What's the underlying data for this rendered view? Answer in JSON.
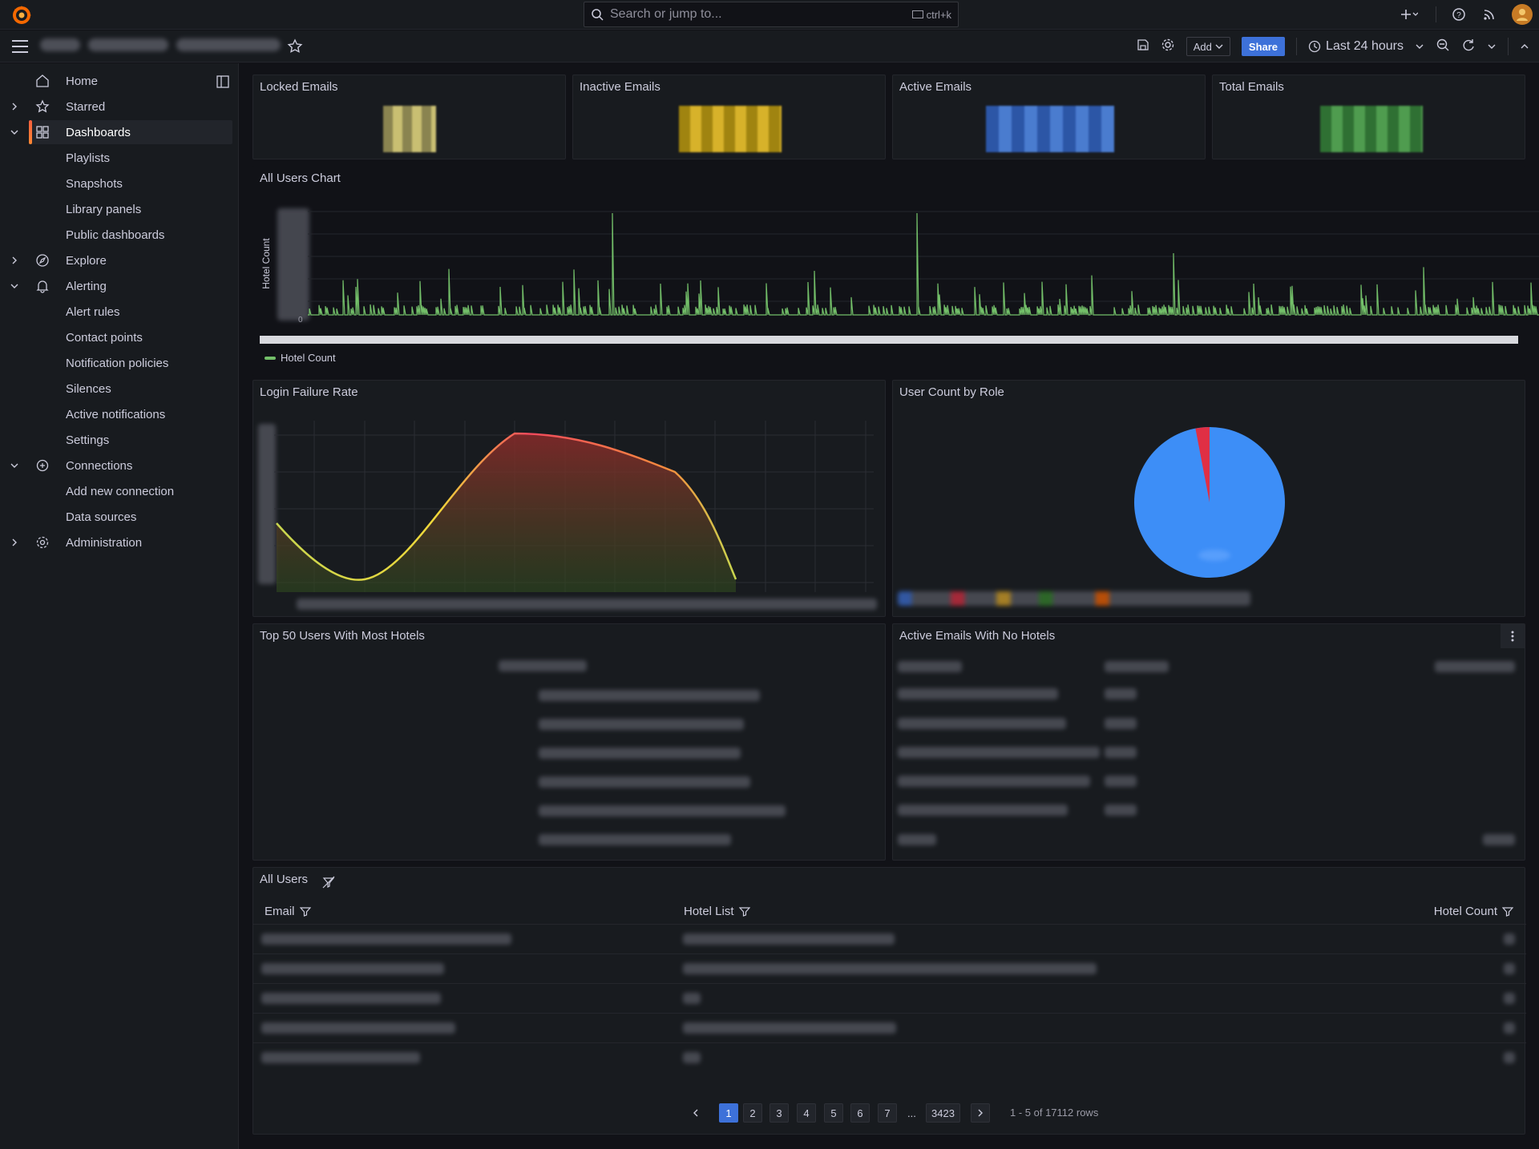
{
  "search": {
    "placeholder": "Search or jump to...",
    "shortcut": "ctrl+k"
  },
  "toolbar": {
    "add_label": "Add",
    "share_label": "Share",
    "time_range": "Last 24 hours"
  },
  "sidebar": {
    "items": [
      {
        "label": "Home",
        "icon": "home-icon"
      },
      {
        "label": "Starred",
        "icon": "star-icon"
      },
      {
        "label": "Dashboards",
        "icon": "dashboards-icon"
      },
      {
        "label": "Playlists"
      },
      {
        "label": "Snapshots"
      },
      {
        "label": "Library panels"
      },
      {
        "label": "Public dashboards"
      },
      {
        "label": "Explore",
        "icon": "compass-icon"
      },
      {
        "label": "Alerting",
        "icon": "bell-icon"
      },
      {
        "label": "Alert rules"
      },
      {
        "label": "Contact points"
      },
      {
        "label": "Notification policies"
      },
      {
        "label": "Silences"
      },
      {
        "label": "Active notifications"
      },
      {
        "label": "Settings"
      },
      {
        "label": "Connections",
        "icon": "connections-icon"
      },
      {
        "label": "Add new connection"
      },
      {
        "label": "Data sources"
      },
      {
        "label": "Administration",
        "icon": "cog-icon"
      }
    ]
  },
  "stats": [
    {
      "title": "Locked Emails",
      "color": "#b6ac62"
    },
    {
      "title": "Inactive Emails",
      "color": "#c9a823"
    },
    {
      "title": "Active Emails",
      "color": "#3f6fc4"
    },
    {
      "title": "Total Emails",
      "color": "#3f8f3f"
    }
  ],
  "panels": {
    "all_users_chart": {
      "title": "All Users Chart",
      "ylabel": "Hotel Count",
      "legend": "Hotel Count",
      "y_tick": "0"
    },
    "login_failure": {
      "title": "Login Failure Rate"
    },
    "user_count_role": {
      "title": "User Count by Role"
    },
    "top50": {
      "title": "Top 50 Users With Most Hotels"
    },
    "active_no_hotels": {
      "title": "Active Emails With No Hotels"
    },
    "all_users": {
      "title": "All Users",
      "columns": [
        "Email",
        "Hotel List",
        "Hotel Count"
      ],
      "pagination": {
        "pages": [
          "1",
          "2",
          "3",
          "4",
          "5",
          "6",
          "7"
        ],
        "ellipsis": "...",
        "last": "3423",
        "rowcount": "1 - 5 of 17112 rows"
      }
    }
  },
  "colors": {
    "accent": "#3d71d9",
    "series_green": "#73bf69",
    "pie_blue": "#3d8ef7",
    "pie_red": "#e02f44"
  },
  "chart_data": [
    {
      "type": "line",
      "title": "All Users Chart",
      "ylabel": "Hotel Count",
      "series": [
        {
          "name": "Hotel Count"
        }
      ]
    },
    {
      "type": "area",
      "title": "Login Failure Rate"
    },
    {
      "type": "pie",
      "title": "User Count by Role",
      "slices": [
        {
          "share": 0.97,
          "color": "#3d8ef7"
        },
        {
          "share": 0.03,
          "color": "#e02f44"
        }
      ]
    }
  ]
}
